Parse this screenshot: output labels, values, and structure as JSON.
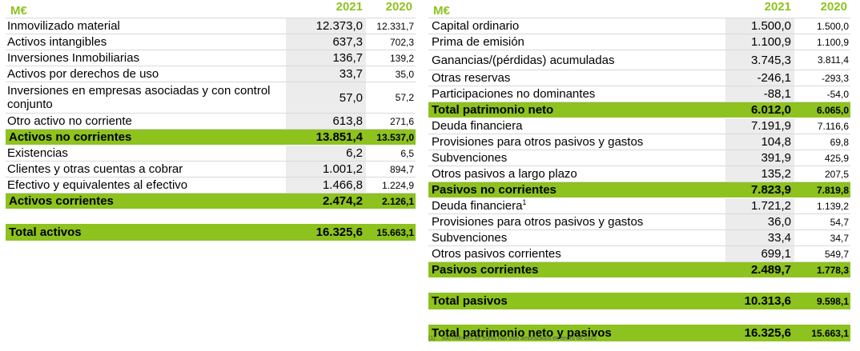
{
  "left": {
    "header": {
      "unit": "M€",
      "y1": "2021",
      "y2": "2020"
    },
    "rows": [
      {
        "label": "Inmovilizado material",
        "v2021": "12.373,0",
        "v2020": "12.331,7",
        "total": false
      },
      {
        "label": "Activos intangibles",
        "v2021": "637,3",
        "v2020": "702,3",
        "total": false
      },
      {
        "label": "Inversiones Inmobiliarias",
        "v2021": "136,7",
        "v2020": "139,2",
        "total": false
      },
      {
        "label": "Activos por derechos de uso",
        "v2021": "33,7",
        "v2020": "35,0",
        "total": false
      },
      {
        "label": "Inversiones en empresas asociadas y con control conjunto",
        "v2021": "57,0",
        "v2020": "57,2",
        "total": false
      },
      {
        "label": "Otro activo no corriente",
        "v2021": "613,8",
        "v2020": "271,6",
        "total": false
      },
      {
        "label": "Activos no corrientes",
        "v2021": "13.851,4",
        "v2020": "13.537,0",
        "total": true
      },
      {
        "label": "Existencias",
        "v2021": "6,2",
        "v2020": "6,5",
        "total": false
      },
      {
        "label": "Clientes y otras cuentas a cobrar",
        "v2021": "1.001,2",
        "v2020": "894,7",
        "total": false
      },
      {
        "label": "Efectivo y equivalentes al efectivo",
        "v2021": "1.466,8",
        "v2020": "1.224,9",
        "total": false
      },
      {
        "label": "Activos corrientes",
        "v2021": "2.474,2",
        "v2020": "2.126,1",
        "total": true
      }
    ],
    "grand_total": {
      "label": "Total activos",
      "v2021": "16.325,6",
      "v2020": "15.663,1"
    }
  },
  "right": {
    "header": {
      "unit": "M€",
      "y1": "2021",
      "y2": "2020"
    },
    "rows": [
      {
        "label": "Capital ordinario",
        "v2021": "1.500,0",
        "v2020": "1.500,0",
        "total": false
      },
      {
        "label": "Prima de emisión",
        "v2021": "1.100,9",
        "v2020": "1.100,9",
        "total": false
      },
      {
        "label": "Ganancias/(pérdidas) acumuladas",
        "v2021": "3.745,3",
        "v2020": "3.811,4",
        "total": false
      },
      {
        "label": "Otras reservas",
        "v2021": "-246,1",
        "v2020": "-293,3",
        "total": false
      },
      {
        "label": "Participaciones no dominantes",
        "v2021": "-88,1",
        "v2020": "-54,0",
        "total": false
      },
      {
        "label": "Total patrimonio neto",
        "v2021": "6.012,0",
        "v2020": "6.065,0",
        "total": true
      },
      {
        "label": "Deuda financiera",
        "v2021": "7.191,9",
        "v2020": "7.116,6",
        "total": false
      },
      {
        "label": "Provisiones para otros pasivos y gastos",
        "v2021": "104,8",
        "v2020": "69,8",
        "total": false
      },
      {
        "label": "Subvenciones",
        "v2021": "391,9",
        "v2020": "425,9",
        "total": false
      },
      {
        "label": "Otros pasivos a largo plazo",
        "v2021": "135,2",
        "v2020": "207,5",
        "total": false
      },
      {
        "label": "Pasivos no corrientes",
        "v2021": "7.823,9",
        "v2020": "7.819,8",
        "total": true
      },
      {
        "label": "Deuda financiera",
        "sup": "1",
        "v2021": "1.721,2",
        "v2020": "1.139,2",
        "total": false
      },
      {
        "label": "Provisiones para otros pasivos y gastos",
        "v2021": "36,0",
        "v2020": "54,7",
        "total": false
      },
      {
        "label": "Subvenciones",
        "v2021": "33,4",
        "v2020": "34,7",
        "total": false
      },
      {
        "label": "Otros pasivos corrientes",
        "v2021": "699,1",
        "v2020": "549,7",
        "total": false
      },
      {
        "label": "Pasivos corrientes",
        "v2021": "2.489,7",
        "v2020": "1.778,3",
        "total": true
      }
    ],
    "total_pasivos": {
      "label": "Total pasivos",
      "v2021": "10.313,6",
      "v2020": "9.598,1"
    },
    "grand_total": {
      "label": "Total patrimonio neto y  pasivos",
      "v2021": "16.325,6",
      "v2020": "15.663,1"
    }
  },
  "footnote": {
    "marker": "(1)",
    "text": "500 millones de euros han sido amortizados en enero de 2022"
  }
}
